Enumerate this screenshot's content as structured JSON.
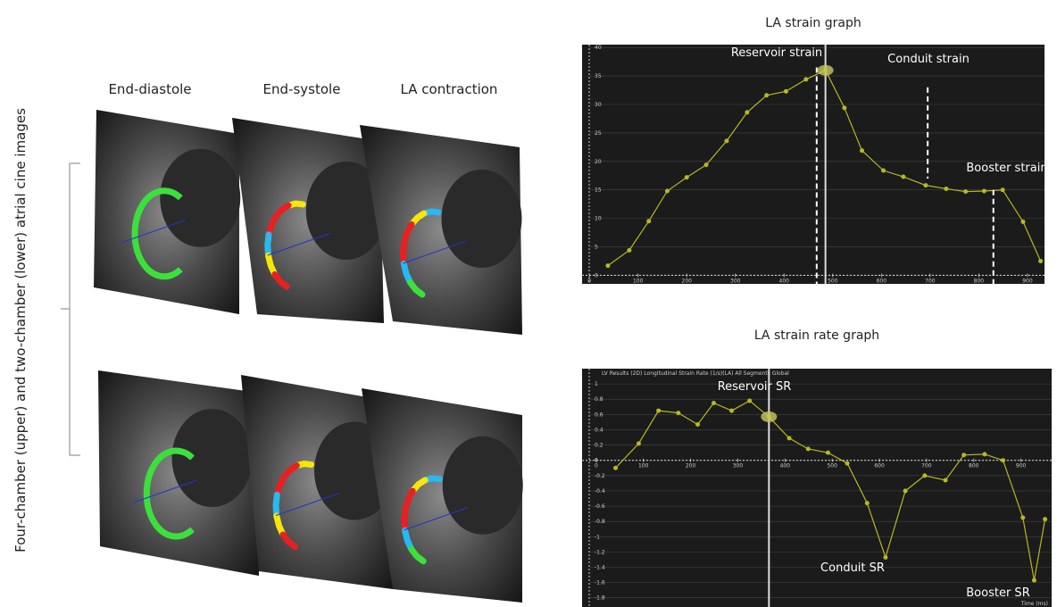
{
  "figure": {
    "row_label": "Four-chamber (upper) and two-chamber (lower) atrial cine images",
    "column_labels": [
      "End-diastole",
      "End-systole",
      "LA contraction"
    ]
  },
  "chart_data": [
    {
      "type": "line",
      "title": "LA strain graph",
      "x": [
        38,
        82,
        122,
        160,
        200,
        240,
        282,
        324,
        364,
        404,
        445,
        485,
        524,
        560,
        604,
        645,
        691,
        733,
        773,
        811,
        849,
        891,
        927
      ],
      "values": [
        1.7,
        4.4,
        9.5,
        14.8,
        17.2,
        19.4,
        23.6,
        28.6,
        31.6,
        32.3,
        34.4,
        36,
        29.4,
        21.9,
        18.4,
        17.3,
        15.8,
        15.2,
        14.7,
        14.8,
        15,
        9.4,
        2.5
      ],
      "color": "#b8b822",
      "xlim": [
        -15,
        935
      ],
      "ylim": [
        -1.5,
        40.5
      ],
      "xticks": [
        0,
        100,
        200,
        300,
        400,
        500,
        600,
        700,
        800,
        900
      ],
      "yticks": [
        0,
        5,
        10,
        15,
        20,
        25,
        30,
        35,
        40
      ],
      "grid": true,
      "annotations": [
        "Reservoir strain",
        "Conduit strain",
        "Booster strain"
      ]
    },
    {
      "type": "line",
      "title": "LA strain rate graph",
      "subtitle": "LV Results (2D) Longitudinal Strain Rate (1/s)(LA) All Segments Global",
      "x_label": "Time (ms)",
      "x": [
        41,
        90,
        132,
        174,
        215,
        249,
        287,
        325,
        366,
        409,
        449,
        491,
        532,
        574,
        613,
        655,
        696,
        740,
        779,
        823,
        862,
        904,
        928,
        951
      ],
      "values": [
        -0.1,
        0.22,
        0.65,
        0.62,
        0.47,
        0.75,
        0.65,
        0.78,
        0.57,
        0.29,
        0.15,
        0.1,
        -0.04,
        -0.56,
        -1.27,
        -0.4,
        -0.2,
        -0.26,
        0.07,
        0.08,
        0,
        -0.75,
        -1.57,
        -0.77
      ],
      "color": "#b8b822",
      "xlim": [
        -30,
        965
      ],
      "ylim": [
        -1.92,
        1.2
      ],
      "xticks": [
        0,
        100,
        200,
        300,
        400,
        500,
        600,
        700,
        800,
        900
      ],
      "yticks": [
        1,
        0.8,
        0.6,
        0.4,
        0.2,
        0,
        -0.2,
        -0.4,
        -0.6,
        -0.8,
        -1,
        -1.2,
        -1.4,
        -1.6,
        -1.8
      ],
      "grid": true,
      "annotations": [
        "Reservoir SR",
        "Conduit SR",
        "Booster SR"
      ]
    }
  ]
}
